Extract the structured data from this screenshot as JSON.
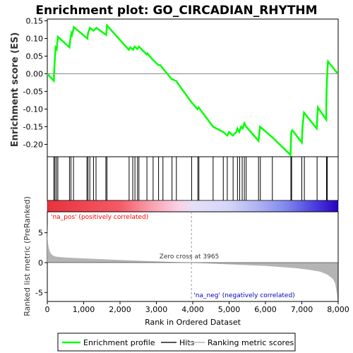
{
  "chart_data": {
    "type": "line",
    "title": "Enrichment plot: GO_CIRCADIAN_RHYTHM",
    "es_panel": {
      "ylabel": "Enrichment score (ES)",
      "ylim": [
        -0.235,
        0.155
      ],
      "yticks": [
        0.15,
        0.1,
        0.05,
        0.0,
        -0.05,
        -0.1,
        -0.15,
        -0.2
      ],
      "ytick_labels": [
        "0.15",
        "0.10",
        "0.05",
        "0.00",
        "-0.05",
        "-0.10",
        "-0.15",
        "-0.20"
      ],
      "series": [
        {
          "name": "Enrichment profile",
          "color": "#00ff00",
          "x": [
            0,
            180,
            190,
            200,
            230,
            260,
            290,
            610,
            630,
            660,
            680,
            730,
            1100,
            1120,
            1170,
            1270,
            1350,
            1620,
            1640,
            2240,
            2280,
            2360,
            2400,
            2480,
            2520,
            2730,
            2750,
            2900,
            2950,
            3050,
            3100,
            3180,
            3420,
            3540,
            3960,
            4130,
            4160,
            4560,
            4840,
            4950,
            5000,
            5100,
            5200,
            5230,
            5280,
            5330,
            5370,
            5420,
            5470,
            5810,
            5850,
            6190,
            6690,
            6710,
            6740,
            7000,
            7020,
            7060,
            7410,
            7440,
            7670,
            7680,
            7700,
            7720,
            7990
          ],
          "y": [
            0.0,
            -0.02,
            0.01,
            0.03,
            0.075,
            0.07,
            0.105,
            0.075,
            0.095,
            0.115,
            0.11,
            0.132,
            0.1,
            0.115,
            0.13,
            0.122,
            0.13,
            0.11,
            0.137,
            0.068,
            0.075,
            0.068,
            0.077,
            0.07,
            0.077,
            0.055,
            0.058,
            0.04,
            0.035,
            0.025,
            0.025,
            0.015,
            -0.015,
            -0.02,
            -0.08,
            -0.1,
            -0.095,
            -0.15,
            -0.165,
            -0.175,
            -0.165,
            -0.175,
            -0.165,
            -0.155,
            -0.165,
            -0.15,
            -0.155,
            -0.14,
            -0.15,
            -0.19,
            -0.15,
            -0.18,
            -0.23,
            -0.165,
            -0.16,
            -0.195,
            -0.15,
            -0.11,
            -0.155,
            -0.095,
            -0.13,
            -0.05,
            0.005,
            0.035,
            0.0
          ]
        }
      ]
    },
    "hits": [
      180,
      210,
      250,
      290,
      610,
      650,
      720,
      1090,
      1120,
      1170,
      1270,
      1340,
      1610,
      1640,
      2250,
      2350,
      2410,
      2480,
      2520,
      2740,
      2910,
      3060,
      3180,
      3430,
      3550,
      3970,
      4140,
      4170,
      4560,
      4840,
      4950,
      5110,
      5230,
      5290,
      5360,
      5420,
      5470,
      5810,
      5860,
      6190,
      6700,
      6720,
      7000,
      7070,
      7420,
      7680,
      7700
    ],
    "rank_panel": {
      "ylabel": "Ranked list metric (PreRanked)",
      "ylim": [
        -6.5,
        8.5
      ],
      "yticks": [
        5,
        0,
        -5
      ],
      "ytick_labels": [
        "5",
        "0",
        "-5"
      ],
      "metric_profile": {
        "x": [
          0,
          10,
          30,
          60,
          100,
          150,
          200,
          300,
          500,
          1000,
          2000,
          3000,
          3965,
          5000,
          6000,
          6800,
          7200,
          7500,
          7700,
          7850,
          7920,
          7960,
          7990
        ],
        "y": [
          6.5,
          4.0,
          2.8,
          2.0,
          1.5,
          1.2,
          1.05,
          0.95,
          0.85,
          0.7,
          0.45,
          0.2,
          0.0,
          -0.3,
          -0.55,
          -0.9,
          -1.2,
          -1.5,
          -2.0,
          -2.7,
          -3.5,
          -5.0,
          -6.5
        ]
      }
    },
    "xlabel": "Rank in Ordered Dataset",
    "xlim": [
      0,
      8000
    ],
    "xticks": [
      0,
      1000,
      2000,
      3000,
      4000,
      5000,
      6000,
      7000,
      8000
    ],
    "xtick_labels": [
      "0",
      "1,000",
      "2,000",
      "3,000",
      "4,000",
      "5,000",
      "6,000",
      "7,000",
      "8,000"
    ],
    "annotations": {
      "pos_label": "'na_pos' (positively correlated)",
      "neg_label": "'na_neg' (negatively correlated)",
      "zero_cross": "Zero cross at 3965",
      "zero_cross_x": 3965
    },
    "legend": {
      "position": "bottom",
      "items": [
        {
          "label": "Enrichment profile",
          "color": "#00ff00"
        },
        {
          "label": "Hits",
          "color": "#555555"
        },
        {
          "label": "Ranking metric scores",
          "color": "#c8c8c8"
        }
      ]
    },
    "colors": {
      "pos_text": "#ff0000",
      "neg_text": "#0000cc",
      "profile": "#00ff00",
      "hits": "#000000",
      "metric_fill": "#b4b4b4",
      "zero_line": "#999999"
    }
  }
}
